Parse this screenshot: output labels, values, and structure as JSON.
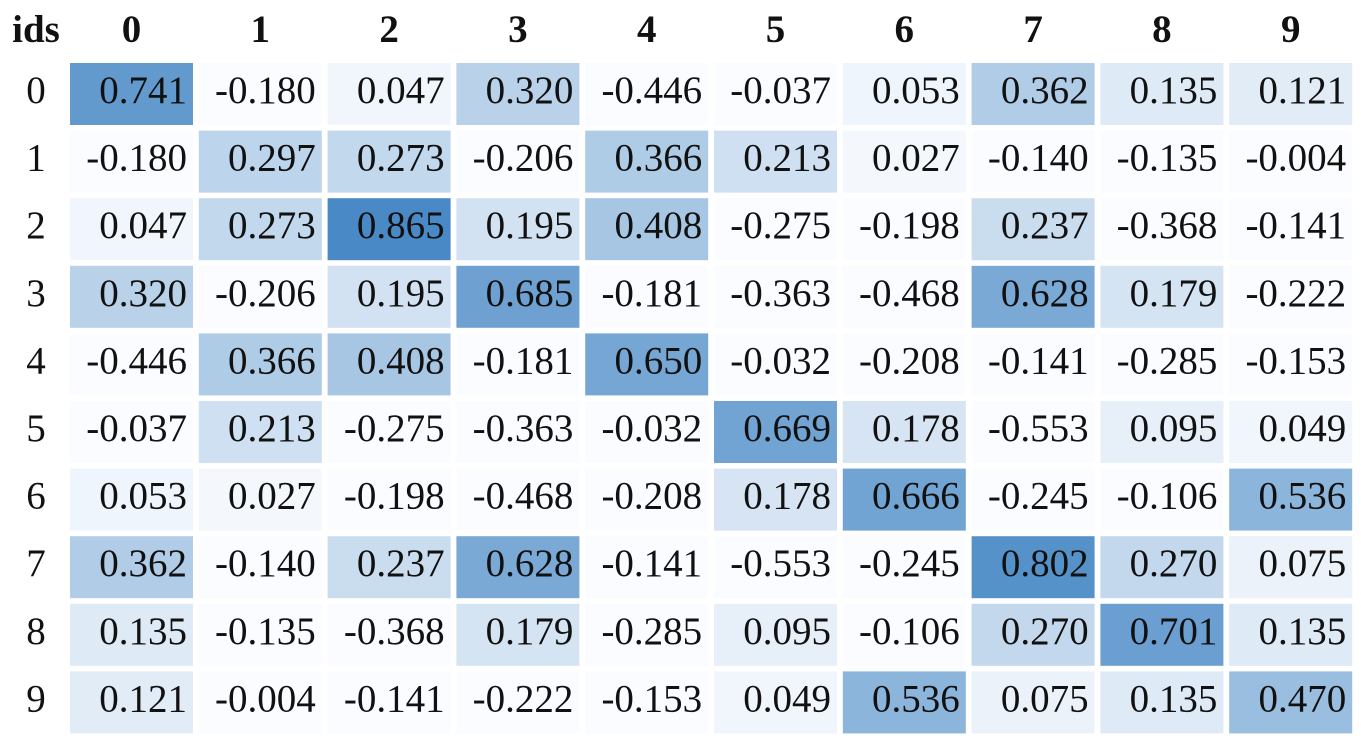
{
  "table": {
    "header": [
      "ids",
      "0",
      "1",
      "2",
      "3",
      "4",
      "5",
      "6",
      "7",
      "8",
      "9"
    ],
    "rows": [
      [
        "0",
        "0.741",
        "-0.180",
        "0.047",
        "0.320",
        "-0.446",
        "-0.037",
        "0.053",
        "0.362",
        "0.135",
        "0.121"
      ],
      [
        "1",
        "-0.180",
        "0.297",
        "0.273",
        "-0.206",
        "0.366",
        "0.213",
        "0.027",
        "-0.140",
        "-0.135",
        "-0.004"
      ],
      [
        "2",
        "0.047",
        "0.273",
        "0.865",
        "0.195",
        "0.408",
        "-0.275",
        "-0.198",
        "0.237",
        "-0.368",
        "-0.141"
      ],
      [
        "3",
        "0.320",
        "-0.206",
        "0.195",
        "0.685",
        "-0.181",
        "-0.363",
        "-0.468",
        "0.628",
        "0.179",
        "-0.222"
      ],
      [
        "4",
        "-0.446",
        "0.366",
        "0.408",
        "-0.181",
        "0.650",
        "-0.032",
        "-0.208",
        "-0.141",
        "-0.285",
        "-0.153"
      ],
      [
        "5",
        "-0.037",
        "0.213",
        "-0.275",
        "-0.363",
        "-0.032",
        "0.669",
        "0.178",
        "-0.553",
        "0.095",
        "0.049"
      ],
      [
        "6",
        "0.053",
        "0.027",
        "-0.198",
        "-0.468",
        "-0.208",
        "0.178",
        "0.666",
        "-0.245",
        "-0.106",
        "0.536"
      ],
      [
        "7",
        "0.362",
        "-0.140",
        "0.237",
        "0.628",
        "-0.141",
        "-0.553",
        "-0.245",
        "0.802",
        "0.270",
        "0.075"
      ],
      [
        "8",
        "0.135",
        "-0.135",
        "-0.368",
        "0.179",
        "-0.285",
        "0.095",
        "-0.106",
        "0.270",
        "0.701",
        "0.135"
      ],
      [
        "9",
        "0.121",
        "-0.004",
        "-0.141",
        "-0.222",
        "-0.153",
        "0.049",
        "0.536",
        "0.075",
        "0.135",
        "0.470"
      ]
    ]
  }
}
